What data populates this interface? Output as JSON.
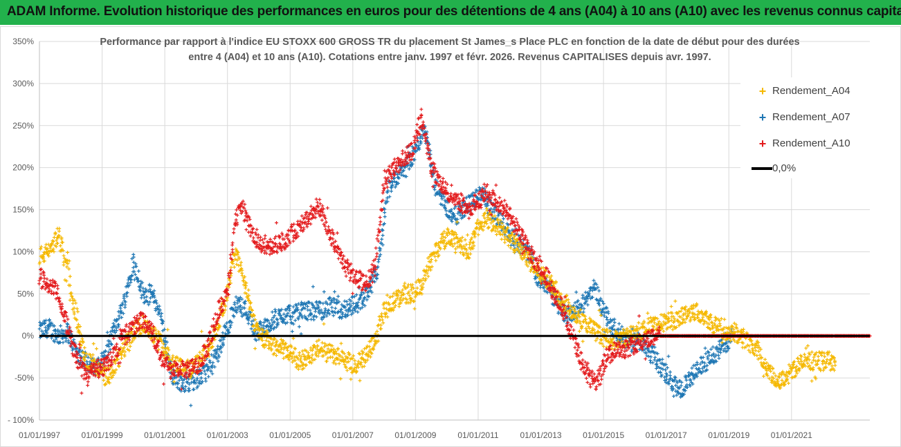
{
  "banner": {
    "title": "ADAM Informe. Evolution historique des performances en euros pour des détentions de 4 ans (A04) à 10 ans (A10) avec les revenus connus capitalisés",
    "color": "#22b14c"
  },
  "chart_data": {
    "type": "scatter",
    "title": "Performance par rapport à l'indice EU STOXX 600 GROSS TR  du placement St James_s Place PLC en fonction de la date de début pour des durées entre 4 (A04) et 10 ans (A10). Cotations entre janv. 1997 et févr. 2026. Revenus CAPITALISES depuis avr. 1997.",
    "title_lines": [
      "Performance par rapport à l'indice EU STOXX 600 GROSS TR  du placement St James_s Place PLC en fonction de la date de début pour des durées",
      "entre 4 (A04) et 10 ans (A10). Cotations entre janv. 1997 et févr. 2026. Revenus CAPITALISES depuis avr. 1997."
    ],
    "xlabel": "",
    "ylabel": "",
    "xlim": [
      1997.0,
      2023.5
    ],
    "ylim": [
      -100,
      350
    ],
    "x_ticks": [
      1997,
      1999,
      2001,
      2003,
      2005,
      2007,
      2009,
      2011,
      2013,
      2015,
      2017,
      2019,
      2021
    ],
    "x_tick_labels": [
      "01/01/1997",
      "01/01/1999",
      "01/01/2001",
      "01/01/2003",
      "01/01/2005",
      "01/01/2007",
      "01/01/2009",
      "01/01/2011",
      "01/01/2013",
      "01/01/2015",
      "01/01/2017",
      "01/01/2019",
      "01/01/2021"
    ],
    "y_ticks": [
      -100,
      -50,
      0,
      50,
      100,
      150,
      200,
      250,
      300,
      350
    ],
    "y_tick_labels": [
      "- 100%",
      "-50%",
      "0%",
      "50%",
      "100%",
      "150%",
      "200%",
      "250%",
      "300%",
      "350%"
    ],
    "grid": true,
    "legend_position": "top-right",
    "series": [
      {
        "name": "Rendement_A04",
        "color": "#f5b800",
        "marker": "+",
        "x": [
          1997.0,
          1997.3,
          1997.6,
          1997.9,
          1998.2,
          1998.5,
          1998.8,
          1999.1,
          1999.4,
          1999.7,
          2000.0,
          2000.3,
          2000.6,
          2000.9,
          2001.2,
          2001.5,
          2001.8,
          2002.1,
          2002.4,
          2002.7,
          2003.0,
          2003.25,
          2003.5,
          2003.8,
          2004.1,
          2004.4,
          2004.7,
          2005.0,
          2005.3,
          2005.6,
          2005.9,
          2006.2,
          2006.5,
          2006.8,
          2007.1,
          2007.4,
          2007.7,
          2008.0,
          2008.3,
          2008.6,
          2008.9,
          2009.2,
          2009.5,
          2009.8,
          2010.1,
          2010.4,
          2010.7,
          2011.0,
          2011.3,
          2011.6,
          2011.9,
          2012.2,
          2012.5,
          2012.8,
          2013.1,
          2013.4,
          2013.7,
          2014.0,
          2014.3,
          2014.6,
          2014.9,
          2015.2,
          2015.5,
          2015.8,
          2016.1,
          2016.4,
          2016.7,
          2017.0,
          2017.3,
          2017.6,
          2017.9,
          2018.2,
          2018.5,
          2018.8,
          2019.1,
          2019.4,
          2019.7,
          2020.0,
          2020.3,
          2020.6,
          2020.9,
          2021.2,
          2021.5,
          2021.8,
          2022.1,
          2022.4
        ],
        "values": [
          95,
          100,
          120,
          80,
          20,
          -30,
          -35,
          -50,
          -40,
          -15,
          5,
          15,
          5,
          -10,
          -30,
          -35,
          -40,
          -30,
          -15,
          15,
          50,
          100,
          70,
          20,
          0,
          -10,
          -15,
          -20,
          -30,
          -25,
          -15,
          -20,
          -25,
          -30,
          -35,
          -25,
          -5,
          30,
          40,
          50,
          50,
          60,
          90,
          110,
          120,
          110,
          100,
          130,
          140,
          130,
          120,
          110,
          95,
          80,
          70,
          60,
          40,
          30,
          20,
          10,
          0,
          -5,
          -5,
          0,
          5,
          10,
          15,
          15,
          20,
          25,
          30,
          25,
          15,
          5,
          5,
          0,
          -10,
          -20,
          -45,
          -55,
          -45,
          -35,
          -30,
          -30,
          -30,
          -30
        ]
      },
      {
        "name": "Rendement_A07",
        "color": "#1f77b4",
        "marker": "+",
        "x": [
          1997.0,
          1997.3,
          1997.6,
          1997.9,
          1998.2,
          1998.5,
          1998.8,
          1999.1,
          1999.4,
          1999.7,
          2000.0,
          2000.3,
          2000.6,
          2000.9,
          2001.2,
          2001.5,
          2001.8,
          2002.1,
          2002.4,
          2002.7,
          2003.0,
          2003.3,
          2003.6,
          2003.9,
          2004.2,
          2004.5,
          2004.8,
          2005.1,
          2005.4,
          2005.7,
          2006.0,
          2006.3,
          2006.6,
          2006.9,
          2007.2,
          2007.5,
          2007.8,
          2008.1,
          2008.4,
          2008.7,
          2009.0,
          2009.3,
          2009.6,
          2009.9,
          2010.2,
          2010.5,
          2010.8,
          2011.1,
          2011.4,
          2011.7,
          2012.0,
          2012.3,
          2012.6,
          2012.9,
          2013.2,
          2013.5,
          2013.8,
          2014.1,
          2014.4,
          2014.7,
          2015.0,
          2015.3,
          2015.6,
          2015.9,
          2016.2,
          2016.5,
          2016.8,
          2017.1,
          2017.4,
          2017.7,
          2018.0,
          2018.3,
          2018.6,
          2018.9,
          2019.1
        ],
        "values": [
          5,
          10,
          0,
          5,
          -20,
          -30,
          -40,
          -25,
          10,
          40,
          90,
          50,
          50,
          20,
          -45,
          -55,
          -55,
          -50,
          -40,
          -20,
          10,
          40,
          30,
          5,
          10,
          20,
          25,
          25,
          30,
          30,
          30,
          35,
          30,
          35,
          40,
          50,
          80,
          170,
          190,
          200,
          220,
          250,
          180,
          160,
          140,
          150,
          160,
          170,
          150,
          140,
          120,
          110,
          100,
          70,
          60,
          40,
          25,
          30,
          40,
          60,
          30,
          10,
          0,
          -10,
          -5,
          -20,
          -35,
          -50,
          -65,
          -55,
          -40,
          -30,
          -20,
          -10,
          0
        ]
      },
      {
        "name": "Rendement_A10",
        "color": "#e31a1c",
        "marker": "+",
        "x": [
          1997.0,
          1997.3,
          1997.6,
          1997.9,
          1998.2,
          1998.5,
          1998.8,
          1999.1,
          1999.4,
          1999.7,
          2000.0,
          2000.3,
          2000.6,
          2000.9,
          2001.2,
          2001.5,
          2001.8,
          2002.1,
          2002.4,
          2002.7,
          2003.0,
          2003.25,
          2003.5,
          2003.8,
          2004.1,
          2004.4,
          2004.7,
          2005.0,
          2005.3,
          2005.6,
          2005.9,
          2006.2,
          2006.5,
          2006.8,
          2007.1,
          2007.4,
          2007.7,
          2008.0,
          2008.3,
          2008.6,
          2008.9,
          2009.2,
          2009.5,
          2009.8,
          2010.1,
          2010.4,
          2010.7,
          2011.0,
          2011.3,
          2011.6,
          2011.9,
          2012.2,
          2012.5,
          2012.8,
          2013.1,
          2013.3,
          2013.6,
          2013.9,
          2014.2,
          2014.5,
          2014.8,
          2015.1,
          2015.4,
          2015.7,
          2016.0,
          2016.3,
          2016.6,
          2017.0,
          2017.5,
          2018.0,
          2018.5,
          2019.0,
          2019.5,
          2020.0,
          2020.5,
          2021.0,
          2021.5,
          2022.0,
          2022.5,
          2023.0,
          2023.5
        ],
        "values": [
          70,
          60,
          50,
          10,
          -30,
          -45,
          -40,
          -35,
          -20,
          0,
          10,
          20,
          5,
          -25,
          -40,
          -40,
          -40,
          -35,
          -10,
          30,
          50,
          140,
          150,
          120,
          110,
          105,
          110,
          120,
          130,
          140,
          155,
          130,
          100,
          80,
          70,
          60,
          80,
          180,
          200,
          210,
          220,
          260,
          200,
          180,
          170,
          160,
          150,
          160,
          170,
          160,
          150,
          130,
          110,
          90,
          80,
          60,
          40,
          10,
          -20,
          -50,
          -55,
          -25,
          -15,
          -15,
          -10,
          -5,
          0,
          0,
          0,
          0,
          0,
          0,
          0,
          0,
          0,
          0,
          0,
          0,
          0,
          0,
          0
        ]
      },
      {
        "name": "0,0%",
        "color": "#000000",
        "type": "line",
        "x": [
          1997.0,
          2023.5
        ],
        "values": [
          0,
          0
        ]
      }
    ]
  }
}
